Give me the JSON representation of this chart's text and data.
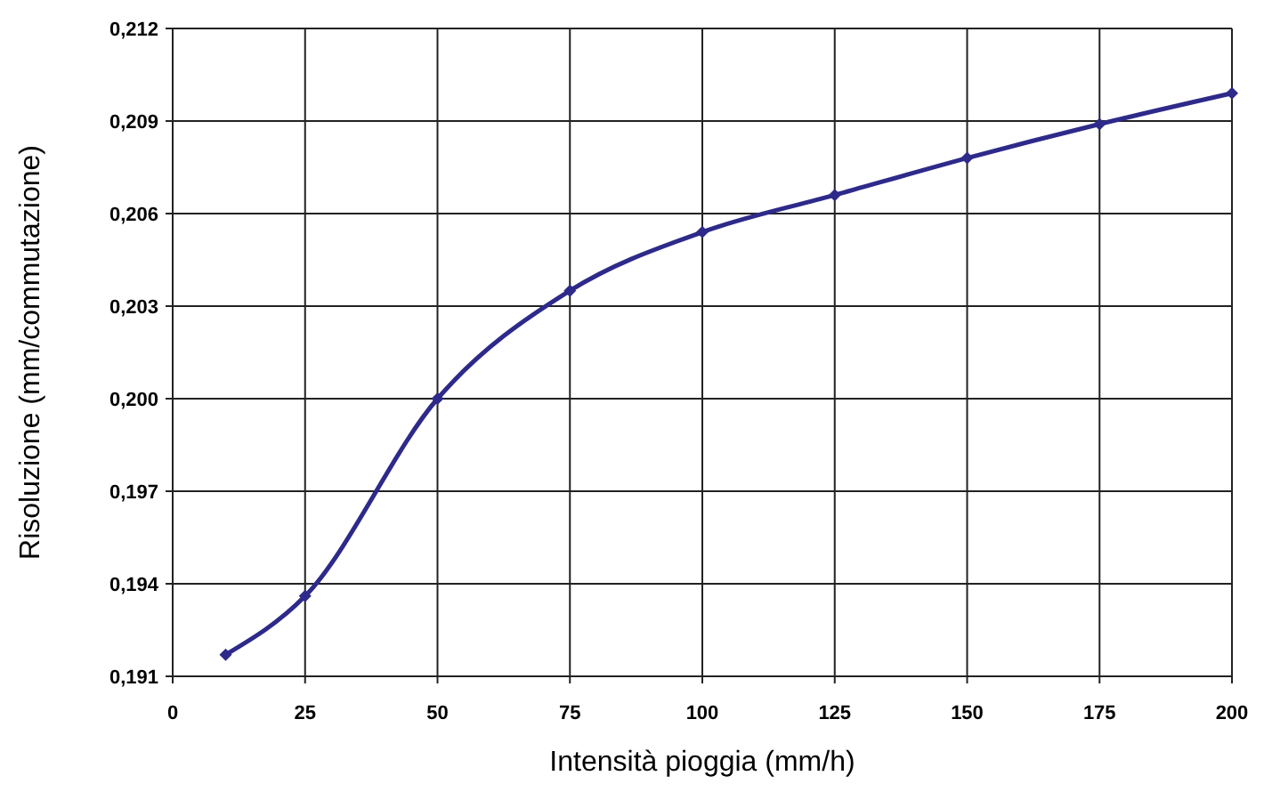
{
  "chart_data": {
    "type": "line",
    "xlabel": "Intensità pioggia (mm/h)",
    "ylabel": "Risoluzione (mm/commutazione)",
    "x": [
      10,
      25,
      50,
      75,
      100,
      125,
      150,
      175,
      200
    ],
    "series": [
      {
        "color": "#2e2a8a",
        "values": [
          0.1917,
          0.1936,
          0.2,
          0.2035,
          0.2054,
          0.2066,
          0.2078,
          0.2089,
          0.2099
        ]
      }
    ],
    "xlim": [
      0,
      200
    ],
    "xticks": [
      0,
      25,
      50,
      75,
      100,
      125,
      150,
      175,
      200
    ],
    "ylim": [
      0.191,
      0.212
    ],
    "yticks": [
      {
        "value": 0.191,
        "label": "0,191"
      },
      {
        "value": 0.194,
        "label": "0,194"
      },
      {
        "value": 0.197,
        "label": "0,197"
      },
      {
        "value": 0.2,
        "label": "0,200"
      },
      {
        "value": 0.203,
        "label": "0,203"
      },
      {
        "value": 0.206,
        "label": "0,206"
      },
      {
        "value": 0.209,
        "label": "0,209"
      },
      {
        "value": 0.212,
        "label": "0,212"
      }
    ],
    "grid": true,
    "marker": "diamond",
    "line_style": "solid"
  }
}
